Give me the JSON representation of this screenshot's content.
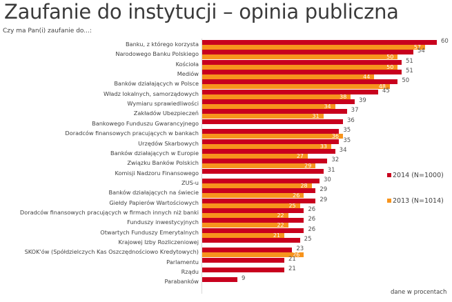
{
  "header": {
    "title": "Zaufanie do instytucji – opinia publiczna",
    "subtitle": "Czy ma Pan(i) zaufanie do...:"
  },
  "legend": {
    "items": [
      {
        "label": "2014 (N=1000)",
        "color": "#C8001E"
      },
      {
        "label": "2013 (N=1014)",
        "color": "#F7941D"
      }
    ]
  },
  "footer": {
    "note": "dane w procentach"
  },
  "chart_data": {
    "type": "bar",
    "orientation": "horizontal",
    "title": "Zaufanie do instytucji – opinia publiczna",
    "subtitle": "Czy ma Pan(i) zaufanie do...:",
    "xlabel": "",
    "ylabel": "",
    "unit_note": "dane w procentach",
    "xlim": [
      0,
      60
    ],
    "grid": false,
    "legend_position": "right",
    "categories": [
      "Banku, z którego korzysta",
      "Narodowego Banku Polskiego",
      "Kościoła",
      "Mediów",
      "Banków działających w Polsce",
      "Władz lokalnych, samorządowych",
      "Wymiaru sprawiedliwości",
      "Zakładów Ubezpieczeń",
      "Bankowego Funduszu Gwarancyjnego",
      "Doradców finansowych pracujących w bankach",
      "Urzędów Skarbowych",
      "Banków działających w Europie",
      "Związku Banków Polskich",
      "Komisji Nadzoru Finansowego",
      "ZUS-u",
      "Banków działających na świecie",
      "Giełdy Papierów Wartościowych",
      "Doradców finansowych pracujących w firmach innych niż banki",
      "Funduszy inwestycyjnych",
      "Otwartych Funduszy Emerytalnych",
      "Krajowej Izby Rozliczeniowej",
      "SKOK'ów (Spółdzielczych Kas Oszczędnościowo Kredytowych)",
      "Parlamentu",
      "Rządu",
      "Parabanków"
    ],
    "series": [
      {
        "name": "2014 (N=1000)",
        "color": "#C8001E",
        "values": [
          60,
          54,
          51,
          51,
          50,
          45,
          39,
          37,
          36,
          35,
          35,
          34,
          32,
          31,
          30,
          29,
          29,
          26,
          26,
          26,
          25,
          23,
          21,
          21,
          9
        ]
      },
      {
        "name": "2013 (N=1014)",
        "color": "#F7941D",
        "values": [
          57,
          50,
          50,
          44,
          48,
          38,
          34,
          31,
          null,
          36,
          33,
          27,
          29,
          null,
          28,
          26,
          25,
          22,
          22,
          21,
          null,
          26,
          null,
          null,
          null
        ]
      }
    ]
  }
}
